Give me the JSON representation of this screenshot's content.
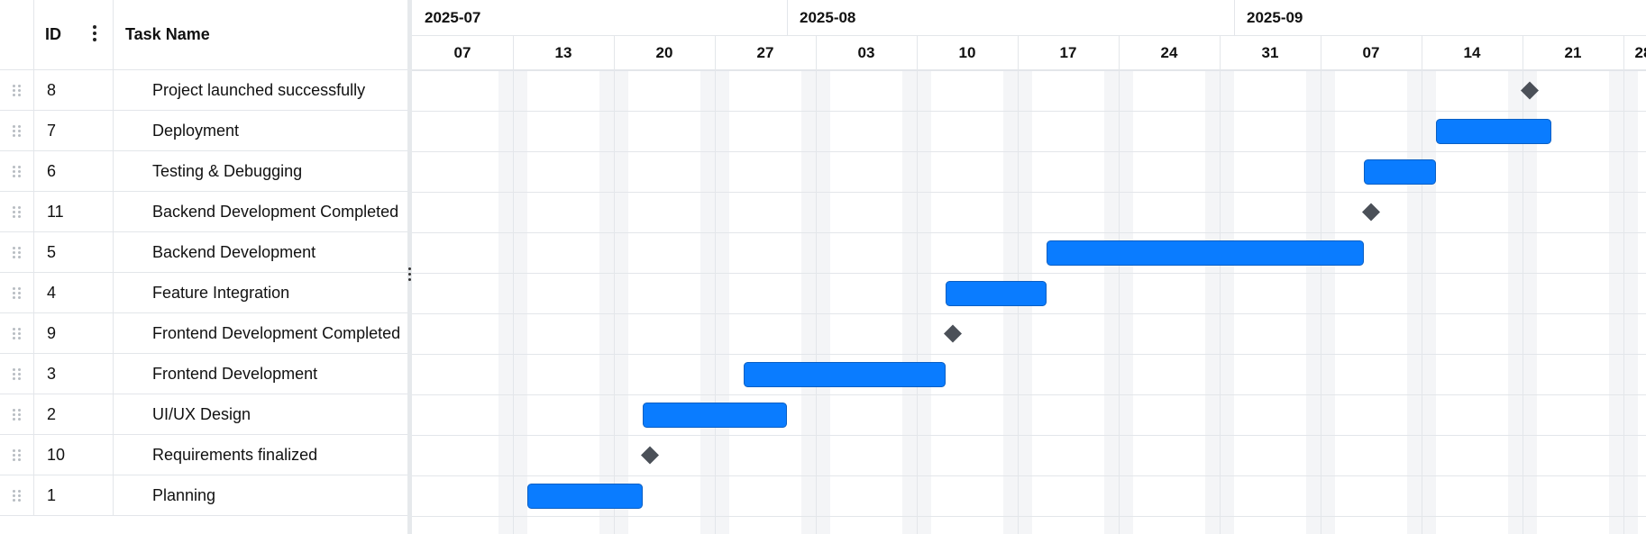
{
  "grid": {
    "columns": {
      "id": "ID",
      "name": "Task Name"
    },
    "rows": [
      {
        "id": "8",
        "name": "Project launched successfully"
      },
      {
        "id": "7",
        "name": "Deployment"
      },
      {
        "id": "6",
        "name": "Testing & Debugging"
      },
      {
        "id": "11",
        "name": "Backend Development Completed"
      },
      {
        "id": "5",
        "name": "Backend Development"
      },
      {
        "id": "4",
        "name": "Feature Integration"
      },
      {
        "id": "9",
        "name": "Frontend Development Completed"
      },
      {
        "id": "3",
        "name": "Frontend Development"
      },
      {
        "id": "2",
        "name": "UI/UX Design"
      },
      {
        "id": "10",
        "name": "Requirements finalized"
      },
      {
        "id": "1",
        "name": "Planning"
      }
    ]
  },
  "timeline": {
    "months": [
      {
        "label": "2025-07",
        "start": "2025-07-01"
      },
      {
        "label": "2025-08",
        "start": "2025-08-01"
      },
      {
        "label": "2025-09",
        "start": "2025-09-01"
      }
    ],
    "weeks": [
      {
        "label": "07",
        "start": "2025-07-07"
      },
      {
        "label": "13",
        "start": "2025-07-13"
      },
      {
        "label": "20",
        "start": "2025-07-20"
      },
      {
        "label": "27",
        "start": "2025-07-27"
      },
      {
        "label": "03",
        "start": "2025-08-03"
      },
      {
        "label": "10",
        "start": "2025-08-10"
      },
      {
        "label": "17",
        "start": "2025-08-17"
      },
      {
        "label": "24",
        "start": "2025-08-24"
      },
      {
        "label": "31",
        "start": "2025-08-31"
      },
      {
        "label": "07",
        "start": "2025-09-07"
      },
      {
        "label": "14",
        "start": "2025-09-14"
      },
      {
        "label": "21",
        "start": "2025-09-21"
      },
      {
        "label": "28",
        "start": "2025-09-28"
      }
    ],
    "tasks": [
      {
        "id": "8",
        "type": "milestone",
        "date": "2025-09-21"
      },
      {
        "id": "7",
        "type": "task",
        "start": "2025-09-15",
        "end": "2025-09-22"
      },
      {
        "id": "6",
        "type": "task",
        "start": "2025-09-10",
        "end": "2025-09-14"
      },
      {
        "id": "11",
        "type": "milestone",
        "date": "2025-09-10"
      },
      {
        "id": "5",
        "type": "task",
        "start": "2025-08-19",
        "end": "2025-09-09"
      },
      {
        "id": "4",
        "type": "task",
        "start": "2025-08-12",
        "end": "2025-08-18"
      },
      {
        "id": "9",
        "type": "milestone",
        "date": "2025-08-12"
      },
      {
        "id": "3",
        "type": "task",
        "start": "2025-07-29",
        "end": "2025-08-11"
      },
      {
        "id": "2",
        "type": "task",
        "start": "2025-07-22",
        "end": "2025-07-31"
      },
      {
        "id": "10",
        "type": "milestone",
        "date": "2025-07-22"
      },
      {
        "id": "1",
        "type": "task",
        "start": "2025-07-14",
        "end": "2025-07-21"
      }
    ]
  },
  "colors": {
    "task_bar": "#0a7cff",
    "task_bar_border": "#0a5fc4",
    "milestone": "#4b5058",
    "weekend_shade": "#f4f5f7",
    "grid_line": "#e3e6ea"
  }
}
